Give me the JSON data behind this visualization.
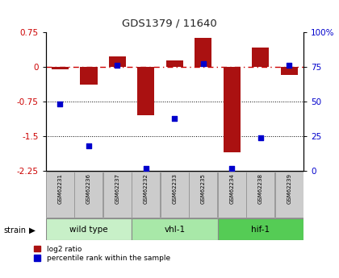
{
  "title": "GDS1379 / 11640",
  "samples": [
    "GSM62231",
    "GSM62236",
    "GSM62237",
    "GSM62232",
    "GSM62233",
    "GSM62235",
    "GSM62234",
    "GSM62238",
    "GSM62239"
  ],
  "log2_ratio": [
    -0.05,
    -0.38,
    0.22,
    -1.05,
    0.13,
    0.62,
    -1.85,
    0.42,
    -0.18
  ],
  "percentile_rank": [
    48,
    18,
    76,
    2,
    38,
    77,
    2,
    24,
    76
  ],
  "ylim_left": [
    -2.25,
    0.75
  ],
  "ylim_right": [
    0,
    100
  ],
  "yticks_left": [
    0.75,
    0,
    -0.75,
    -1.5,
    -2.25
  ],
  "yticks_right": [
    100,
    75,
    50,
    25,
    0
  ],
  "groups": [
    {
      "label": "wild type",
      "start": 0,
      "end": 3,
      "color": "#c8f0c8"
    },
    {
      "label": "vhl-1",
      "start": 3,
      "end": 6,
      "color": "#a8e8a8"
    },
    {
      "label": "hif-1",
      "start": 6,
      "end": 9,
      "color": "#55cc55"
    }
  ],
  "bar_color": "#aa1111",
  "dot_color": "#0000cc",
  "ref_line_color": "#cc0000",
  "dotted_line_color": "#000000",
  "sample_box_color": "#cccccc",
  "background_color": "#ffffff"
}
